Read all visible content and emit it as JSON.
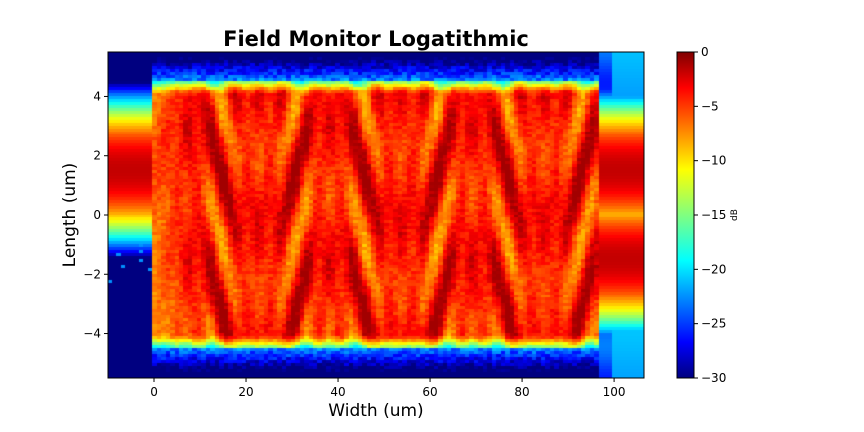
{
  "chart_data": {
    "type": "heatmap",
    "title": "Field Monitor Logatithmic",
    "xlabel": "Width (um)",
    "ylabel": "Length (um)",
    "xlim": [
      -10,
      106.5
    ],
    "ylim": [
      -5.5,
      5.5
    ],
    "x_ticks": [
      0,
      20,
      40,
      60,
      80,
      100
    ],
    "y_ticks": [
      -4,
      -2,
      0,
      2,
      4
    ],
    "colormap": "jet",
    "colorbar": {
      "label": "dB",
      "range": [
        -30,
        0
      ],
      "ticks": [
        0,
        -5,
        -10,
        -15,
        -20,
        -25,
        -30
      ]
    },
    "structure": {
      "input_waveguide": {
        "x_range": [
          -10,
          0
        ],
        "center_y": 1.5,
        "peak_db": -2
      },
      "mmi_region": {
        "x_range": [
          0,
          97
        ],
        "y_range": [
          -4.5,
          4.5
        ],
        "typical_db": [
          -8,
          -1
        ]
      },
      "output_waveguides": [
        {
          "x_range": [
            97,
            106.5
          ],
          "center_y": 1.5,
          "peak_db": -2
        },
        {
          "x_range": [
            97,
            106.5
          ],
          "center_y": -1.5,
          "peak_db": -2
        }
      ],
      "background_db": -30
    }
  }
}
